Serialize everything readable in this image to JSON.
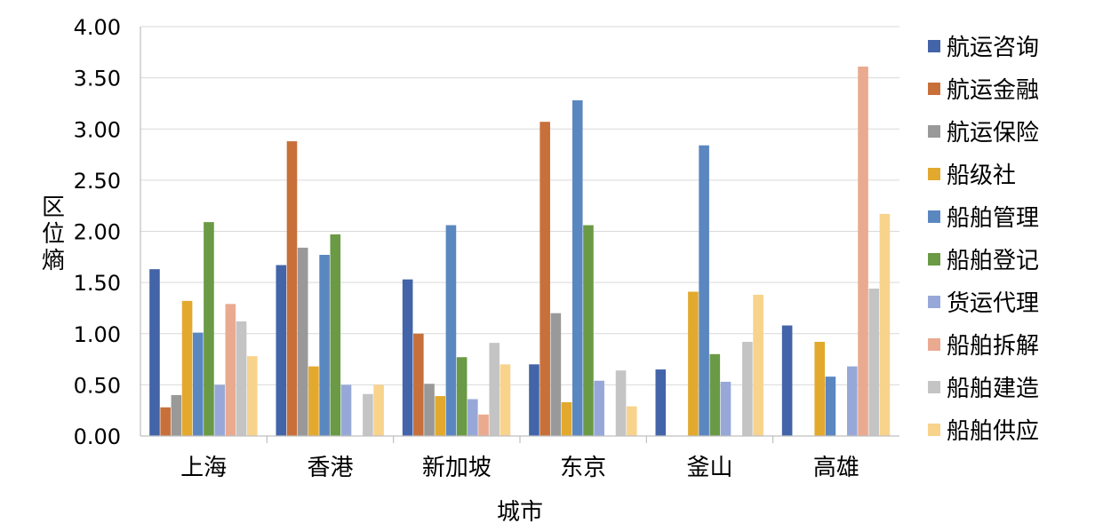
{
  "chart_data": {
    "type": "bar",
    "xlabel": "城市",
    "ylabel": "区位熵",
    "ylim": [
      0,
      4
    ],
    "yticks": [
      "0.00",
      "0.50",
      "1.00",
      "1.50",
      "2.00",
      "2.50",
      "3.00",
      "3.50",
      "4.00"
    ],
    "grid": true,
    "legend_position": "right",
    "categories": [
      "上海",
      "香港",
      "新加坡",
      "东京",
      "釜山",
      "高雄"
    ],
    "series": [
      {
        "name": "航运咨询",
        "color": "#4364A8",
        "values": [
          1.63,
          1.67,
          1.53,
          0.7,
          0.65,
          1.08
        ]
      },
      {
        "name": "航运金融",
        "color": "#C8703A",
        "values": [
          0.28,
          2.88,
          1.0,
          3.07,
          0,
          0
        ]
      },
      {
        "name": "航运保险",
        "color": "#999999",
        "values": [
          0.4,
          1.84,
          0.51,
          1.2,
          0,
          0
        ]
      },
      {
        "name": "船级社",
        "color": "#E2A92E",
        "values": [
          1.32,
          0.68,
          0.39,
          0.33,
          1.41,
          0.92
        ]
      },
      {
        "name": "船舶管理",
        "color": "#5B87C0",
        "values": [
          1.01,
          1.77,
          2.06,
          3.28,
          2.84,
          0.58
        ]
      },
      {
        "name": "船舶登记",
        "color": "#6A9A45",
        "values": [
          2.09,
          1.97,
          0.77,
          2.06,
          0.8,
          0
        ]
      },
      {
        "name": "货运代理",
        "color": "#97A8D8",
        "values": [
          0.5,
          0.5,
          0.36,
          0.54,
          0.53,
          0.68
        ]
      },
      {
        "name": "船舶拆解",
        "color": "#E9AA90",
        "values": [
          1.29,
          0,
          0.21,
          0,
          0,
          3.61
        ]
      },
      {
        "name": "船舶建造",
        "color": "#C4C4C4",
        "values": [
          1.12,
          0.41,
          0.91,
          0.64,
          0.92,
          1.44
        ]
      },
      {
        "name": "船舶供应",
        "color": "#F8D38C",
        "values": [
          0.78,
          0.5,
          0.7,
          0.29,
          1.38,
          2.17
        ]
      }
    ]
  }
}
